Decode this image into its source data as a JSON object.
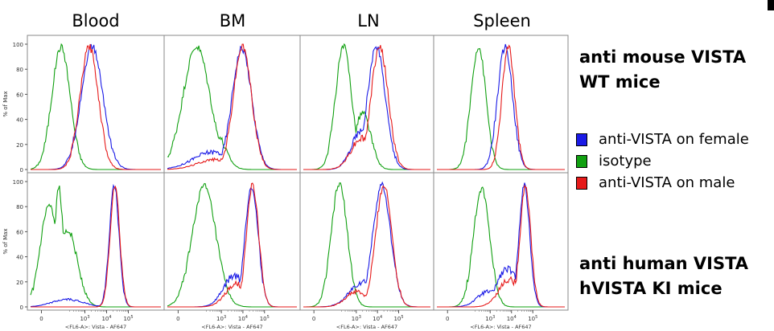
{
  "panel_titles": [
    "Blood",
    "BM",
    "LN",
    "Spleen"
  ],
  "row_titles": [
    [
      "anti mouse VISTA",
      "WT mice"
    ],
    [
      "anti human VISTA",
      "hVISTA KI mice"
    ]
  ],
  "legend": [
    {
      "label": "anti-VISTA on female",
      "color": "#1a1ae6"
    },
    {
      "label": "isotype",
      "color": "#11a011"
    },
    {
      "label": "anti-VISTA on male",
      "color": "#e61a1a"
    }
  ],
  "colors": {
    "female": "#1a1ae6",
    "isotype": "#11a011",
    "male": "#e61a1a"
  },
  "chart_data": {
    "type": "line",
    "ylabel": "% of Max",
    "xlabel": "<FL6-A>: Vista - AF647",
    "ylim": [
      0,
      100
    ],
    "yticks": [
      0,
      20,
      40,
      60,
      80,
      100
    ],
    "x_scale": "biexponential",
    "xticks": [
      "0",
      "10^3",
      "10^4",
      "10^5"
    ],
    "xtick_values": [
      0,
      1000,
      10000,
      100000
    ],
    "grid": false,
    "panels": [
      {
        "row": 0,
        "col": 0,
        "series": [
          {
            "name": "isotype",
            "peaks": [
              [
                0.9,
                98,
                0.42
              ]
            ]
          },
          {
            "name": "anti-VISTA on female",
            "peaks": [
              [
                2.33,
                98,
                0.5
              ]
            ]
          },
          {
            "name": "anti-VISTA on male",
            "peaks": [
              [
                2.2,
                98,
                0.42
              ]
            ]
          }
        ]
      },
      {
        "row": 0,
        "col": 1,
        "series": [
          {
            "name": "isotype",
            "peaks": [
              [
                0.85,
                98,
                0.62
              ],
              [
                1.7,
                30,
                0.45
              ]
            ]
          },
          {
            "name": "anti-VISTA on female",
            "peaks": [
              [
                2.95,
                97,
                0.45
              ],
              [
                1.6,
                14,
                0.9
              ]
            ]
          },
          {
            "name": "anti-VISTA on male",
            "peaks": [
              [
                2.98,
                98,
                0.42
              ],
              [
                1.7,
                8,
                0.8
              ]
            ]
          }
        ]
      },
      {
        "row": 0,
        "col": 2,
        "series": [
          {
            "name": "isotype",
            "peaks": [
              [
                1.4,
                98,
                0.38
              ],
              [
                2.3,
                45,
                0.38
              ]
            ]
          },
          {
            "name": "anti-VISTA on female",
            "peaks": [
              [
                2.95,
                98,
                0.42
              ],
              [
                2.2,
                30,
                0.45
              ]
            ]
          },
          {
            "name": "anti-VISTA on male",
            "peaks": [
              [
                3.1,
                98,
                0.4
              ],
              [
                2.25,
                25,
                0.5
              ]
            ]
          }
        ]
      },
      {
        "row": 0,
        "col": 3,
        "series": [
          {
            "name": "isotype",
            "peaks": [
              [
                1.45,
                98,
                0.35
              ]
            ]
          },
          {
            "name": "anti-VISTA on female",
            "peaks": [
              [
                2.7,
                98,
                0.35
              ]
            ]
          },
          {
            "name": "anti-VISTA on male",
            "peaks": [
              [
                2.85,
                98,
                0.3
              ]
            ]
          }
        ]
      },
      {
        "row": 1,
        "col": 0,
        "series": [
          {
            "name": "isotype",
            "peaks": [
              [
                0.35,
                80,
                0.4
              ],
              [
                1.2,
                62,
                0.45
              ],
              [
                0.8,
                95,
                0.2
              ]
            ]
          },
          {
            "name": "anti-VISTA on female",
            "peaks": [
              [
                3.35,
                97,
                0.22
              ],
              [
                1.2,
                6,
                0.7
              ]
            ]
          },
          {
            "name": "anti-VISTA on male",
            "peaks": [
              [
                3.38,
                97,
                0.22
              ]
            ]
          }
        ]
      },
      {
        "row": 1,
        "col": 1,
        "series": [
          {
            "name": "isotype",
            "peaks": [
              [
                1.2,
                96,
                0.55
              ]
            ]
          },
          {
            "name": "anti-VISTA on female",
            "peaks": [
              [
                3.4,
                97,
                0.3
              ],
              [
                2.6,
                25,
                0.5
              ]
            ]
          },
          {
            "name": "anti-VISTA on male",
            "peaks": [
              [
                3.45,
                97,
                0.28
              ],
              [
                2.7,
                18,
                0.5
              ]
            ]
          }
        ]
      },
      {
        "row": 1,
        "col": 2,
        "series": [
          {
            "name": "isotype",
            "peaks": [
              [
                1.2,
                98,
                0.38
              ]
            ]
          },
          {
            "name": "anti-VISTA on female",
            "peaks": [
              [
                3.2,
                97,
                0.42
              ],
              [
                2.3,
                20,
                0.6
              ]
            ]
          },
          {
            "name": "anti-VISTA on male",
            "peaks": [
              [
                3.3,
                97,
                0.38
              ],
              [
                2.0,
                12,
                0.5
              ]
            ]
          }
        ]
      },
      {
        "row": 1,
        "col": 3,
        "series": [
          {
            "name": "isotype",
            "peaks": [
              [
                1.6,
                95,
                0.38
              ]
            ]
          },
          {
            "name": "anti-VISTA on female",
            "peaks": [
              [
                3.6,
                97,
                0.25
              ],
              [
                2.8,
                30,
                0.5
              ],
              [
                1.9,
                12,
                0.5
              ]
            ]
          },
          {
            "name": "anti-VISTA on male",
            "peaks": [
              [
                3.65,
                97,
                0.25
              ],
              [
                2.9,
                22,
                0.5
              ]
            ]
          }
        ]
      }
    ]
  }
}
